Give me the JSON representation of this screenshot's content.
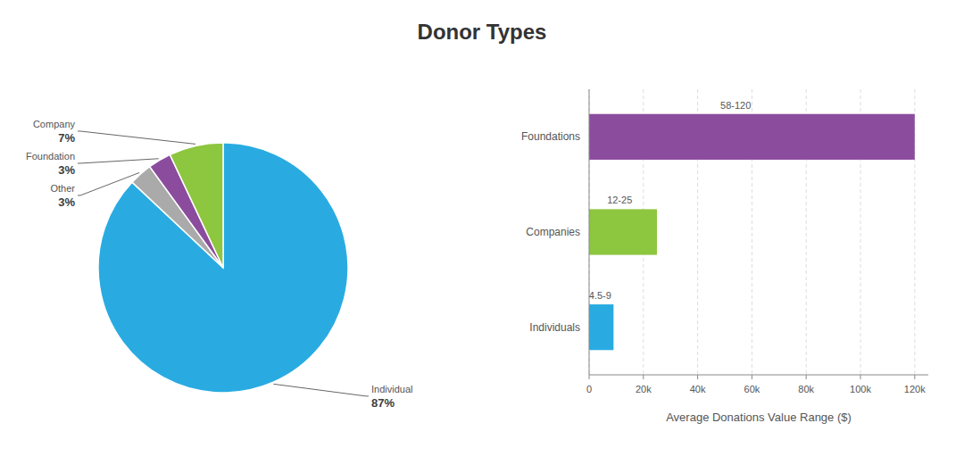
{
  "chart_data": [
    {
      "type": "pie",
      "title": "Donor Types",
      "categories": [
        "Individual",
        "Other",
        "Foundation",
        "Company"
      ],
      "values": [
        87,
        3,
        3,
        7
      ],
      "value_labels": [
        "87%",
        "3%",
        "3%",
        "7%"
      ],
      "colors": [
        "#29abe2",
        "#aaaaaa",
        "#8b4c9e",
        "#8dc63f"
      ],
      "data_labels": true
    },
    {
      "type": "bar",
      "orientation": "horizontal",
      "categories": [
        "Individuals",
        "Companies",
        "Foundations"
      ],
      "values": [
        9000,
        25000,
        120000
      ],
      "colors": [
        "#29abe2",
        "#8dc63f",
        "#8b4c9e"
      ],
      "annotations": [
        "4.5-9",
        "12-25",
        "58-120"
      ],
      "xlabel": "Average Donations Value Range ($)",
      "xlim": [
        0,
        125000
      ],
      "xticks": [
        0,
        {
          "value": 20000,
          "label": "20k"
        },
        {
          "value": 40000,
          "label": "40k"
        },
        {
          "value": 60000,
          "label": "60k"
        },
        {
          "value": 80000,
          "label": "80k"
        },
        {
          "value": 100000,
          "label": "100k"
        },
        {
          "value": 120000,
          "label": "120k"
        }
      ],
      "grid": true
    }
  ]
}
